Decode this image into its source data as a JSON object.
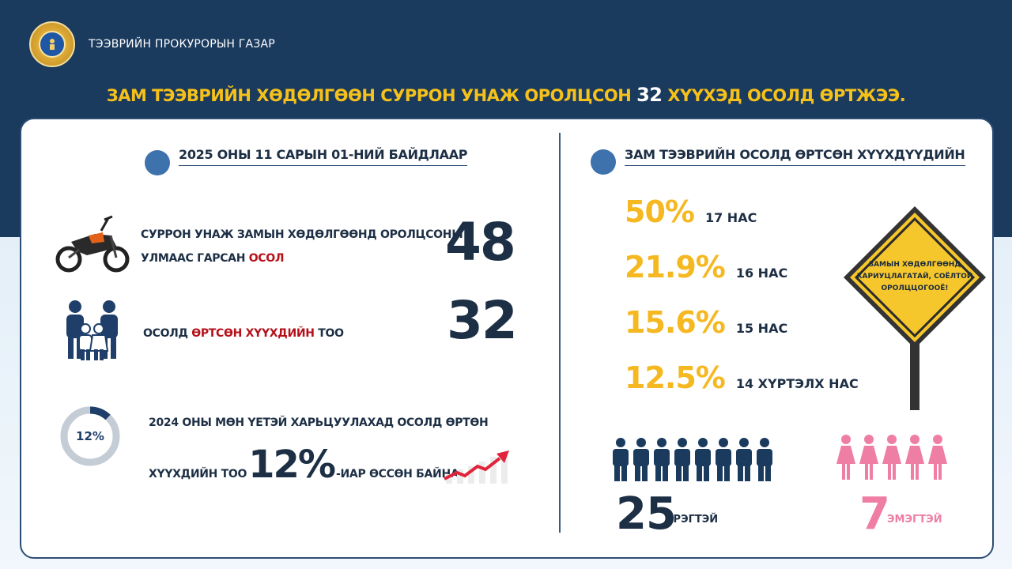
{
  "header": {
    "agency": "ТЭЭВРИЙН ПРОКУРОРЫН ГАЗАР",
    "headline_pre": "ЗАМ ТЭЭВРИЙН ХӨДӨЛГӨӨН СУРРОН УНАЖ ОРОЛЦСОН ",
    "headline_num": "32",
    "headline_post": " ХҮҮХЭД ОСОЛД ӨРТЖЭЭ."
  },
  "left": {
    "title": "2025 ОНЫ 11 САРЫН 01-НИЙ БАЙДЛААР",
    "stat1": {
      "line1": "СУРРОН УНАЖ ЗАМЫН ХӨДӨЛГӨӨНД  ОРОЛЦСОНЫ",
      "line2_pre": "УЛМААС ГАРСАН ",
      "line2_red": "ОСОЛ",
      "value": "48"
    },
    "stat2": {
      "pre": "ОСОЛД ",
      "red": "ӨРТСӨН ХҮҮХДИЙН",
      "post": " ТОО",
      "value": "32"
    },
    "stat3": {
      "badge": "12%",
      "line1": "2024 ОНЫ МӨН ҮЕТЭЙ ХАРЬЦУУЛАХАД ОСОЛД ӨРТӨН",
      "line2_pre": "ХҮҮХДИЙН ТОО ",
      "line2_big": "12%",
      "line2_post": "-ИАР ӨССӨН БАЙНА.",
      "progress": 0.12
    }
  },
  "right": {
    "title": "ЗАМ ТЭЭВРИЙН ОСОЛД ӨРТСӨН ХҮҮХДҮҮДИЙН",
    "ages": [
      {
        "pct": "50%",
        "label": "17 НАС"
      },
      {
        "pct": "21.9%",
        "label": "16 НАС"
      },
      {
        "pct": "15.6%",
        "label": "15 НАС"
      },
      {
        "pct": "12.5%",
        "label": "14 ХҮРТЭЛХ НАС"
      }
    ],
    "sign": {
      "line1": "ЗАМЫН ХӨДӨЛГӨӨНД",
      "line2": "ХАРИУЦЛАГАТАЙ, СОЁЛТОЙ",
      "line3": "ОРОЛЦЦОГООЁ!"
    },
    "male": {
      "value": "25",
      "label": "ЭРЭГТЭЙ"
    },
    "female": {
      "value": "7",
      "label": "ЭМЭГТЭЙ"
    }
  },
  "colors": {
    "navy": "#1a3a5e",
    "gold": "#f5b820",
    "red": "#b5111b",
    "pink": "#ef7ea5",
    "accent_blue": "#3d72ad"
  }
}
